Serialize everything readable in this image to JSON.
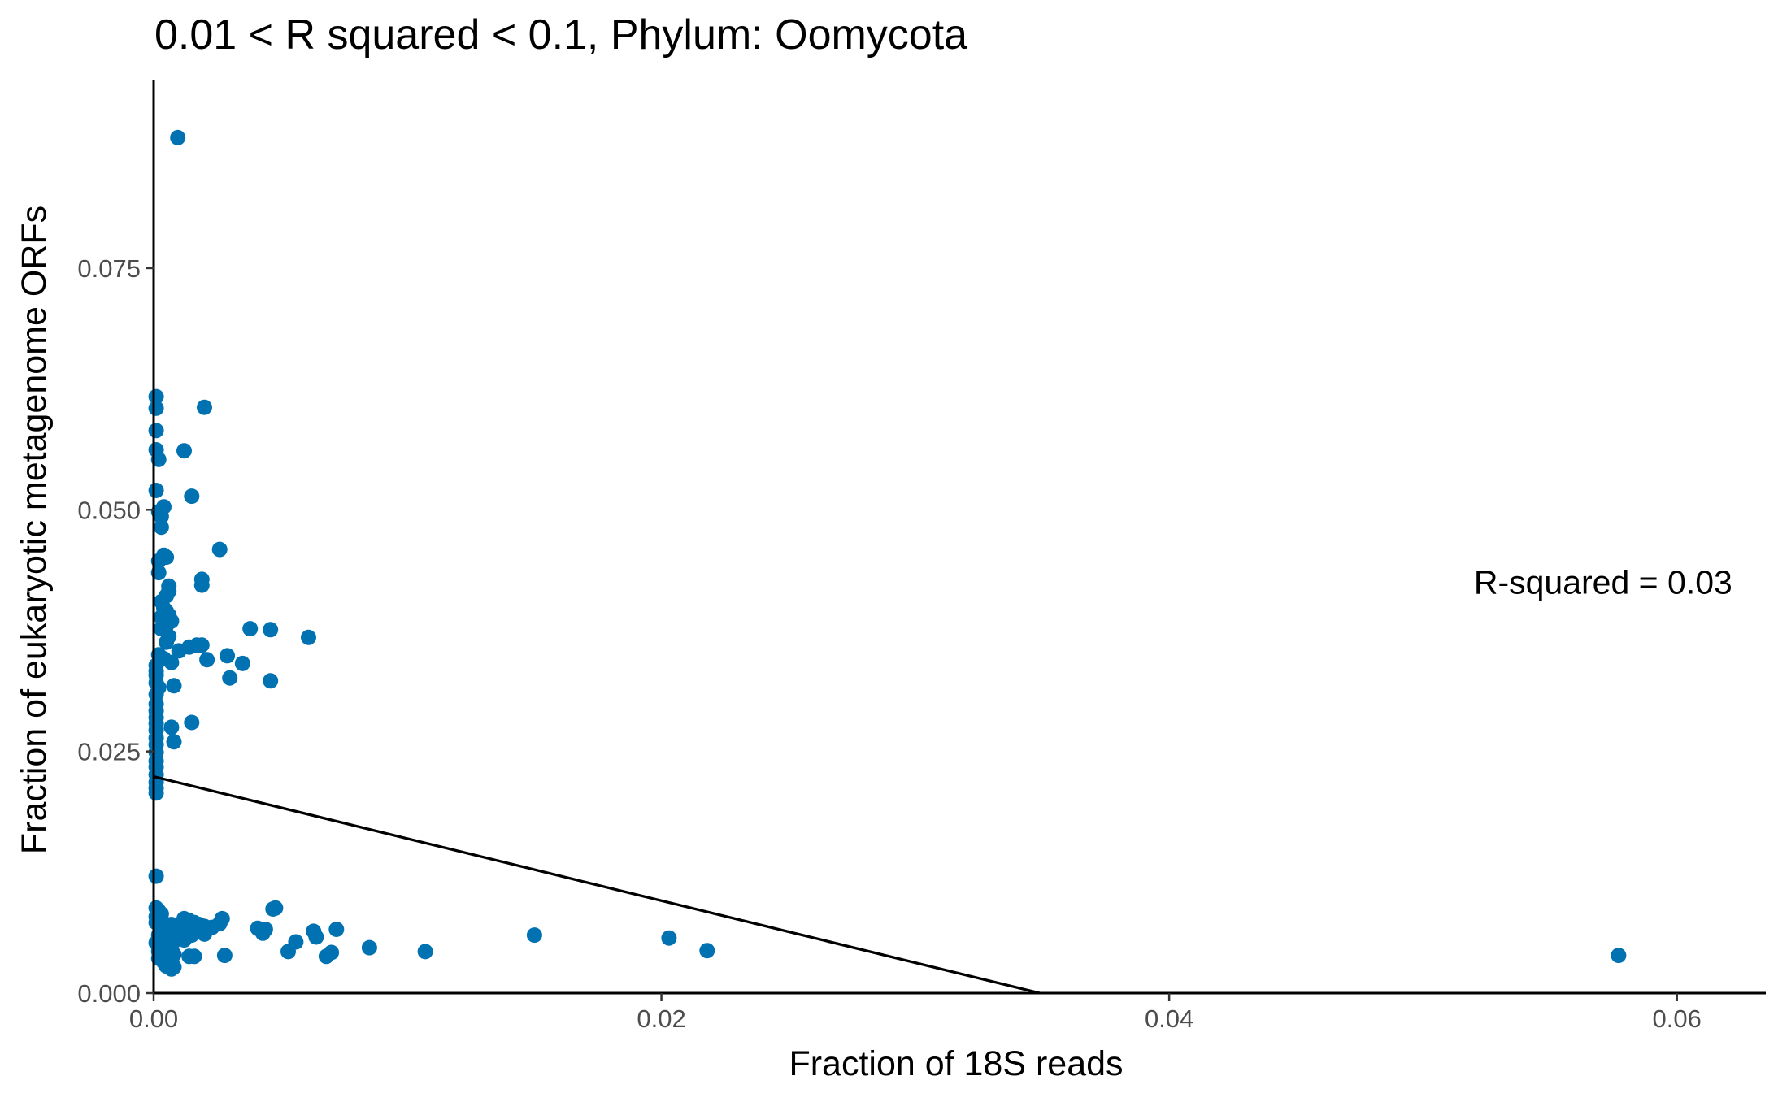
{
  "chart_data": {
    "type": "scatter",
    "title": "0.01 < R squared < 0.1, Phylum:  Oomycota",
    "xlabel": "Fraction of 18S reads",
    "ylabel": "Fraction of eukaryotic metagenome ORFs",
    "xlim": [
      0,
      0.0635
    ],
    "ylim": [
      0,
      0.0945
    ],
    "x_ticks": [
      0,
      0.02,
      0.04,
      0.06
    ],
    "x_tick_labels": [
      "0.00",
      "0.02",
      "0.04",
      "0.06"
    ],
    "y_ticks": [
      0,
      0.025,
      0.05,
      0.075
    ],
    "y_tick_labels": [
      "0.000",
      "0.025",
      "0.050",
      "0.075"
    ],
    "grid": false,
    "legend": "none",
    "point_color": "#0072B2",
    "line_color": "#000000",
    "annotation": {
      "text": "R-squared =  0.03",
      "x": 0.052,
      "y": 0.0425
    },
    "regression_line": {
      "x": [
        0,
        0.0349
      ],
      "y": [
        0.0224,
        0
      ]
    },
    "points": [
      [
        0.00095,
        0.0885
      ],
      [
        0.002,
        0.0606
      ],
      [
        0.0012,
        0.0561
      ],
      [
        0.0015,
        0.0514
      ],
      [
        0.0026,
        0.0459
      ],
      [
        0.0019,
        0.0428
      ],
      [
        0.0019,
        0.0422
      ],
      [
        0.0038,
        0.0377
      ],
      [
        0.0046,
        0.0376
      ],
      [
        0.0061,
        0.0368
      ],
      [
        0.0017,
        0.036
      ],
      [
        0.0019,
        0.036
      ],
      [
        0.0014,
        0.0358
      ],
      [
        0.0029,
        0.0349
      ],
      [
        0.0021,
        0.0345
      ],
      [
        0.0035,
        0.0341
      ],
      [
        0.003,
        0.0326
      ],
      [
        0.0046,
        0.0323
      ],
      [
        0.0008,
        0.0318
      ],
      [
        0.0015,
        0.028
      ],
      [
        0.0007,
        0.0275
      ],
      [
        0.0008,
        0.026
      ],
      [
        0.0001,
        0.0617
      ],
      [
        0.0001,
        0.0605
      ],
      [
        0.0001,
        0.0582
      ],
      [
        0.0001,
        0.0562
      ],
      [
        0.0002,
        0.0552
      ],
      [
        0.0001,
        0.052
      ],
      [
        0.0004,
        0.0503
      ],
      [
        0.0002,
        0.0498
      ],
      [
        0.0003,
        0.0493
      ],
      [
        0.0003,
        0.0482
      ],
      [
        0.0004,
        0.0453
      ],
      [
        0.0005,
        0.0451
      ],
      [
        0.0002,
        0.0447
      ],
      [
        0.0002,
        0.0435
      ],
      [
        0.0006,
        0.0421
      ],
      [
        0.0006,
        0.0416
      ],
      [
        0.0005,
        0.0411
      ],
      [
        0.0003,
        0.0405
      ],
      [
        0.0004,
        0.0398
      ],
      [
        0.0005,
        0.0395
      ],
      [
        0.0006,
        0.0391
      ],
      [
        0.0003,
        0.0389
      ],
      [
        0.0004,
        0.0385
      ],
      [
        0.0007,
        0.0385
      ],
      [
        0.0005,
        0.038
      ],
      [
        0.0003,
        0.0377
      ],
      [
        0.0006,
        0.0369
      ],
      [
        0.0005,
        0.0363
      ],
      [
        0.001,
        0.0354
      ],
      [
        0.0002,
        0.035
      ],
      [
        0.0004,
        0.0346
      ],
      [
        0.0007,
        0.0342
      ],
      [
        0.0001,
        0.0339
      ],
      [
        0.0001,
        0.0333
      ],
      [
        0.0001,
        0.0329
      ],
      [
        0.0001,
        0.0321
      ],
      [
        0.0002,
        0.0316
      ],
      [
        0.0001,
        0.0309
      ],
      [
        0.0001,
        0.0299
      ],
      [
        0.0001,
        0.0292
      ],
      [
        0.0001,
        0.0285
      ],
      [
        0.0001,
        0.0279
      ],
      [
        0.0001,
        0.0272
      ],
      [
        0.0001,
        0.0264
      ],
      [
        0.0001,
        0.0257
      ],
      [
        0.0001,
        0.0249
      ],
      [
        0.0001,
        0.024
      ],
      [
        0.0001,
        0.0234
      ],
      [
        0.0001,
        0.0226
      ],
      [
        0.0001,
        0.0218
      ],
      [
        0.0001,
        0.0212
      ],
      [
        0.0001,
        0.0207
      ],
      [
        0.0001,
        0.0121
      ],
      [
        0.0001,
        0.0088
      ],
      [
        0.0002,
        0.0085
      ],
      [
        0.0003,
        0.0082
      ],
      [
        0.0001,
        0.0079
      ],
      [
        0.0003,
        0.0076
      ],
      [
        0.0001,
        0.0073
      ],
      [
        0.0004,
        0.0072
      ],
      [
        0.0007,
        0.0071
      ],
      [
        0.0009,
        0.007
      ],
      [
        0.0012,
        0.0077
      ],
      [
        0.0014,
        0.0075
      ],
      [
        0.0016,
        0.0073
      ],
      [
        0.0018,
        0.0071
      ],
      [
        0.002,
        0.0069
      ],
      [
        0.0023,
        0.0068
      ],
      [
        0.0006,
        0.0068
      ],
      [
        0.0008,
        0.0066
      ],
      [
        0.001,
        0.0065
      ],
      [
        0.0003,
        0.0064
      ],
      [
        0.0011,
        0.0063
      ],
      [
        0.0013,
        0.0061
      ],
      [
        0.0015,
        0.006
      ],
      [
        0.0002,
        0.006
      ],
      [
        0.0005,
        0.0059
      ],
      [
        0.0008,
        0.0057
      ],
      [
        0.001,
        0.0056
      ],
      [
        0.0012,
        0.0055
      ],
      [
        0.0019,
        0.0063
      ],
      [
        0.002,
        0.0061
      ],
      [
        0.0004,
        0.0053
      ],
      [
        0.0001,
        0.0052
      ],
      [
        0.0003,
        0.005
      ],
      [
        0.0007,
        0.0049
      ],
      [
        0.0002,
        0.0048
      ],
      [
        0.0005,
        0.0046
      ],
      [
        0.0006,
        0.0044
      ],
      [
        0.0002,
        0.0043
      ],
      [
        0.0003,
        0.0041
      ],
      [
        0.0008,
        0.004
      ],
      [
        0.0014,
        0.0038
      ],
      [
        0.0016,
        0.0038
      ],
      [
        0.0005,
        0.0037
      ],
      [
        0.0002,
        0.0036
      ],
      [
        0.0004,
        0.0035
      ],
      [
        0.0007,
        0.0034
      ],
      [
        0.0004,
        0.0032
      ],
      [
        0.0006,
        0.003
      ],
      [
        0.0005,
        0.0028
      ],
      [
        0.0008,
        0.0027
      ],
      [
        0.0007,
        0.0025
      ],
      [
        0.0026,
        0.0072
      ],
      [
        0.0027,
        0.0077
      ],
      [
        0.0028,
        0.0039
      ],
      [
        0.0041,
        0.0067
      ],
      [
        0.0043,
        0.0062
      ],
      [
        0.0044,
        0.0066
      ],
      [
        0.0047,
        0.0087
      ],
      [
        0.0048,
        0.0088
      ],
      [
        0.0053,
        0.0043
      ],
      [
        0.0056,
        0.0053
      ],
      [
        0.0063,
        0.0064
      ],
      [
        0.0064,
        0.0058
      ],
      [
        0.0068,
        0.0038
      ],
      [
        0.007,
        0.0042
      ],
      [
        0.0072,
        0.0066
      ],
      [
        0.0085,
        0.0047
      ],
      [
        0.0107,
        0.0043
      ],
      [
        0.015,
        0.006
      ],
      [
        0.0203,
        0.0057
      ],
      [
        0.0218,
        0.0044
      ],
      [
        0.0577,
        0.0039
      ]
    ]
  }
}
